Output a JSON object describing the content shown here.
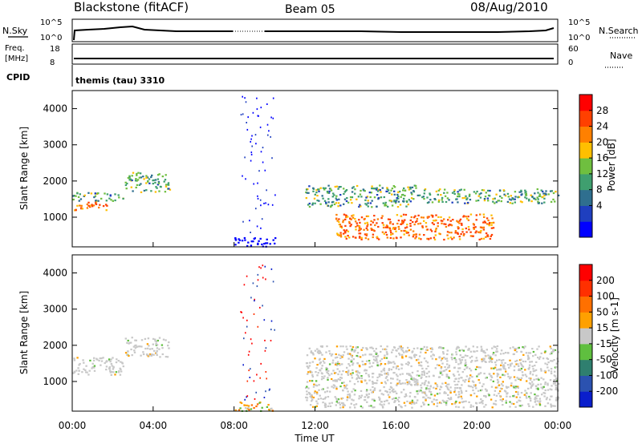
{
  "header": {
    "station": "Blackstone (fitACF)",
    "beam": "Beam 05",
    "date": "08/Aug/2010"
  },
  "top_panels": {
    "nsky_label": "N.Sky",
    "nsky_ticks": [
      "10^5",
      "10^0"
    ],
    "nsearch_label": "N.Search",
    "nsearch_ticks": [
      "10^5",
      "10^0"
    ],
    "freq_label_1": "Freq.",
    "freq_label_2": "[MHz]",
    "freq_ticks": [
      "18",
      "8"
    ],
    "nave_label": "Nave",
    "nave_ticks": [
      "60",
      "0"
    ],
    "cpid_label": "CPID",
    "cpid_value": "themis (tau) 3310"
  },
  "colors": {
    "power_scale": [
      "#0000ff",
      "#1f3fbf",
      "#2f6f8f",
      "#3f9f6f",
      "#6fbf3f",
      "#ffbf00",
      "#ff8000",
      "#ff4000",
      "#ff0000"
    ],
    "velocity_scale": [
      "#0a1ecc",
      "#2b52b0",
      "#2f7f6f",
      "#5fbf3f",
      "#c8c8c8",
      "#ffa000",
      "#ff7000",
      "#ff3000",
      "#ff0000"
    ]
  },
  "chart_data": [
    {
      "type": "heatmap",
      "title": "Power",
      "xlabel": "Time UT",
      "ylabel": "Slant Range [km]",
      "x_ticks": [
        "00:00",
        "04:00",
        "08:00",
        "12:00",
        "16:00",
        "20:00",
        "00:00"
      ],
      "x_range_hours": [
        0,
        24
      ],
      "y_ticks": [
        1000,
        2000,
        3000,
        4000
      ],
      "ylim": [
        180,
        4500
      ],
      "colorbar_label": "Power [dB]",
      "colorbar_ticks": [
        "28",
        "24",
        "20",
        "16",
        "12",
        "8",
        "4"
      ],
      "colorbar_range": [
        0,
        30
      ],
      "regions": [
        {
          "x_start": 0.0,
          "x_end": 1.7,
          "y_start": 1200,
          "y_end": 1450,
          "level": "high"
        },
        {
          "x_start": 0.0,
          "x_end": 2.5,
          "y_start": 1450,
          "y_end": 1700,
          "level": "mid"
        },
        {
          "x_start": 2.6,
          "x_end": 4.8,
          "y_start": 1700,
          "y_end": 2250,
          "level": "mid"
        },
        {
          "x_start": 8.0,
          "x_end": 10.0,
          "y_start": 200,
          "y_end": 450,
          "level": "low"
        },
        {
          "x_start": 11.5,
          "x_end": 17.0,
          "y_start": 1300,
          "y_end": 1900,
          "level": "mid"
        },
        {
          "x_start": 13.0,
          "x_end": 20.8,
          "y_start": 400,
          "y_end": 1100,
          "level": "high"
        },
        {
          "x_start": 17.0,
          "x_end": 24.0,
          "y_start": 1400,
          "y_end": 1800,
          "level": "mid"
        },
        {
          "x_start": 8.3,
          "x_end": 10.0,
          "y_start": 500,
          "y_end": 4400,
          "level": "scatter"
        }
      ]
    },
    {
      "type": "heatmap",
      "title": "Velocity",
      "xlabel": "Time UT",
      "ylabel": "Slant Range [km]",
      "x_ticks": [
        "00:00",
        "04:00",
        "08:00",
        "12:00",
        "16:00",
        "20:00",
        "00:00"
      ],
      "x_range_hours": [
        0,
        24
      ],
      "y_ticks": [
        1000,
        2000,
        3000,
        4000
      ],
      "ylim": [
        180,
        4500
      ],
      "colorbar_label": "Velocity [m s-1]",
      "colorbar_ticks": [
        "200",
        "100",
        "50",
        "15",
        "-15",
        "-50",
        "-100",
        "-200"
      ],
      "colorbar_range": [
        -250,
        250
      ],
      "regions": [
        {
          "x_start": 0.0,
          "x_end": 2.5,
          "y_start": 1200,
          "y_end": 1700,
          "level": "grey"
        },
        {
          "x_start": 2.6,
          "x_end": 4.8,
          "y_start": 1700,
          "y_end": 2250,
          "level": "grey"
        },
        {
          "x_start": 8.0,
          "x_end": 10.0,
          "y_start": 200,
          "y_end": 450,
          "level": "mixed"
        },
        {
          "x_start": 11.5,
          "x_end": 24.0,
          "y_start": 300,
          "y_end": 2000,
          "level": "grey"
        },
        {
          "x_start": 8.3,
          "x_end": 10.0,
          "y_start": 500,
          "y_end": 4400,
          "level": "scatter"
        }
      ]
    }
  ]
}
